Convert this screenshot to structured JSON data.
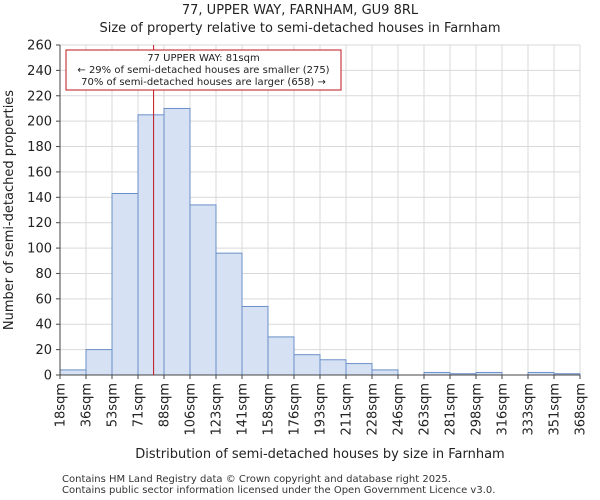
{
  "header": {
    "line1": "77, UPPER WAY, FARNHAM, GU9 8RL",
    "line2": "Size of property relative to semi-detached houses in Farnham"
  },
  "footer": {
    "line1": "Contains HM Land Registry data © Crown copyright and database right 2025.",
    "line2": "Contains public sector information licensed under the Open Government Licence v3.0."
  },
  "chart_data": {
    "type": "bar",
    "title": "77, UPPER WAY, FARNHAM, GU9 8RL",
    "subtitle": "Size of property relative to semi-detached houses in Farnham",
    "xlabel": "Distribution of semi-detached houses by size in Farnham",
    "ylabel": "Number of semi-detached properties",
    "ylim": [
      0,
      260
    ],
    "yticks": [
      0,
      20,
      40,
      60,
      80,
      100,
      120,
      140,
      160,
      180,
      200,
      220,
      240,
      260
    ],
    "bin_edges": [
      18,
      35.5,
      53,
      70.5,
      88,
      105.5,
      123,
      140.5,
      158,
      175.5,
      193,
      210.5,
      228,
      245.5,
      263,
      280.5,
      298,
      315.5,
      333,
      350.5,
      368
    ],
    "tick_labels": [
      "18sqm",
      "36sqm",
      "53sqm",
      "71sqm",
      "88sqm",
      "106sqm",
      "123sqm",
      "141sqm",
      "158sqm",
      "176sqm",
      "193sqm",
      "211sqm",
      "228sqm",
      "246sqm",
      "263sqm",
      "281sqm",
      "298sqm",
      "316sqm",
      "333sqm",
      "351sqm",
      "368sqm"
    ],
    "values": [
      4,
      20,
      143,
      205,
      210,
      134,
      96,
      54,
      30,
      16,
      12,
      9,
      4,
      0,
      2,
      1,
      2,
      0,
      2,
      1
    ],
    "bar_color": "#d6e2f4",
    "bar_edge": "#6a8fc7",
    "marker": {
      "value": 81,
      "color": "#c0141e",
      "lines": [
        "77 UPPER WAY: 81sqm",
        "← 29% of semi-detached houses are smaller (275)",
        "70% of semi-detached houses are larger (658) →"
      ]
    },
    "grid": true
  }
}
